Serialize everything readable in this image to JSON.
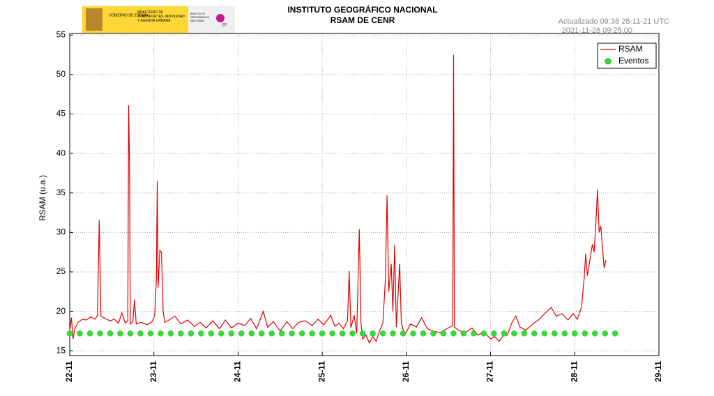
{
  "logo": {
    "gov": "GOBIERNO DE ESPAÑA",
    "ministry": "MINISTERIO DE TRANSPORTES, MOVILIDAD Y AGENDA URBANA",
    "institute": "INSTITUTO GEOGRÁFICO NACIONAL",
    "brand": "ign"
  },
  "chart_data": {
    "type": "line",
    "title": "INSTITUTO GEOGRÁFICO NACIONAL",
    "subtitle": "RSAM DE CENR",
    "updated": "Actualizado 09:38 28-11-21 UTC",
    "timestamp": "2021-11-28 09:25:00",
    "y_label": "RSAM (u.a.)",
    "xlim": [
      0,
      7
    ],
    "xticks": [
      {
        "value": 0,
        "label": "22-11"
      },
      {
        "value": 1,
        "label": "23-11"
      },
      {
        "value": 2,
        "label": "24-11"
      },
      {
        "value": 3,
        "label": "25-11"
      },
      {
        "value": 4,
        "label": "26-11"
      },
      {
        "value": 5,
        "label": "27-11"
      },
      {
        "value": 6,
        "label": "28-11"
      },
      {
        "value": 7,
        "label": "29-11"
      }
    ],
    "ylim": [
      14.4,
      55.2
    ],
    "yticks": [
      15,
      20,
      25,
      30,
      35,
      40,
      45,
      50,
      55
    ],
    "grid": true,
    "legend": "top-right",
    "series": [
      {
        "name": "RSAM",
        "color": "#e00000",
        "style": "line",
        "x": [
          0,
          0.02,
          0.04,
          0.06,
          0.1,
          0.15,
          0.2,
          0.25,
          0.3,
          0.33,
          0.35,
          0.37,
          0.42,
          0.48,
          0.53,
          0.58,
          0.62,
          0.66,
          0.69,
          0.7,
          0.71,
          0.72,
          0.75,
          0.77,
          0.79,
          0.85,
          0.92,
          0.98,
          1.01,
          1.03,
          1.04,
          1.05,
          1.07,
          1.09,
          1.11,
          1.13,
          1.18,
          1.25,
          1.32,
          1.4,
          1.48,
          1.55,
          1.62,
          1.7,
          1.78,
          1.85,
          1.92,
          2,
          2.08,
          2.15,
          2.22,
          2.3,
          2.35,
          2.42,
          2.5,
          2.58,
          2.65,
          2.72,
          2.8,
          2.88,
          2.95,
          3.02,
          3.1,
          3.15,
          3.2,
          3.25,
          3.3,
          3.32,
          3.34,
          3.38,
          3.41,
          3.44,
          3.46,
          3.48,
          3.52,
          3.56,
          3.6,
          3.64,
          3.68,
          3.72,
          3.75,
          3.77,
          3.79,
          3.82,
          3.84,
          3.86,
          3.88,
          3.92,
          3.94,
          3.98,
          4.05,
          4.12,
          4.18,
          4.25,
          4.32,
          4.4,
          4.48,
          4.55,
          4.56,
          4.57,
          4.62,
          4.7,
          4.78,
          4.85,
          4.92,
          5,
          5.05,
          5.1,
          5.15,
          5.2,
          5.25,
          5.3,
          5.35,
          5.42,
          5.5,
          5.58,
          5.65,
          5.72,
          5.78,
          5.85,
          5.92,
          5.98,
          6.03,
          6.08,
          6.11,
          6.13,
          6.15,
          6.18,
          6.21,
          6.23,
          6.25,
          6.27,
          6.29,
          6.31,
          6.33,
          6.35,
          6.37
        ],
        "values": [
          17.5,
          19.2,
          16.5,
          17.8,
          18.6,
          19,
          18.9,
          19.3,
          19,
          19.5,
          31.6,
          19.4,
          19.1,
          18.8,
          19,
          18.5,
          19.8,
          18.5,
          18.8,
          46.1,
          39.4,
          18.4,
          18.7,
          21.5,
          18.4,
          18.6,
          18.3,
          18.7,
          19.5,
          24,
          36.5,
          23,
          27.7,
          27.5,
          20,
          18.6,
          18.9,
          19.4,
          18.4,
          18.9,
          18.1,
          18.6,
          17.9,
          18.8,
          17.8,
          18.9,
          17.9,
          18.5,
          18.2,
          19.1,
          17.8,
          20,
          18,
          18.7,
          17.5,
          18.7,
          17.8,
          18.6,
          18.8,
          18.2,
          19,
          18.3,
          19.5,
          18.1,
          18.5,
          17.8,
          18.8,
          25.1,
          17.9,
          19.5,
          17.2,
          30.4,
          18.5,
          16.5,
          17,
          16,
          16.8,
          16.2,
          17.5,
          18.5,
          24,
          34.7,
          22.5,
          26,
          20,
          28.4,
          18,
          26,
          18.5,
          17,
          18.4,
          18,
          19.2,
          17.8,
          17.5,
          17.3,
          17.8,
          18.2,
          52.5,
          18,
          17.6,
          17.3,
          17.9,
          17,
          17.4,
          16.5,
          16.8,
          16.2,
          16.9,
          17,
          18.5,
          19.4,
          18,
          17.6,
          18.4,
          19,
          19.8,
          20.5,
          19.4,
          19.7,
          18.9,
          19.7,
          19,
          20.5,
          24,
          27.3,
          24.5,
          26.5,
          28.5,
          27.5,
          31,
          35.4,
          30,
          30.8,
          28,
          25.5,
          26.5
        ]
      },
      {
        "name": "Eventos",
        "color": "#33dd33",
        "style": "points",
        "x": [
          0,
          0.12,
          0.24,
          0.36,
          0.48,
          0.6,
          0.72,
          0.84,
          0.96,
          1.08,
          1.2,
          1.32,
          1.44,
          1.56,
          1.68,
          1.8,
          1.92,
          2.04,
          2.16,
          2.28,
          2.4,
          2.52,
          2.64,
          2.76,
          2.88,
          3,
          3.12,
          3.24,
          3.36,
          3.48,
          3.6,
          3.72,
          3.84,
          3.96,
          4.08,
          4.2,
          4.32,
          4.44,
          4.56,
          4.68,
          4.8,
          4.92,
          5.04,
          5.16,
          5.28,
          5.4,
          5.52,
          5.64,
          5.76,
          5.88,
          6,
          6.12,
          6.24,
          6.36,
          6.48
        ],
        "values": [
          17.2,
          17.2,
          17.2,
          17.2,
          17.2,
          17.2,
          17.2,
          17.2,
          17.2,
          17.2,
          17.2,
          17.2,
          17.2,
          17.2,
          17.2,
          17.2,
          17.2,
          17.2,
          17.2,
          17.2,
          17.2,
          17.2,
          17.2,
          17.2,
          17.2,
          17.2,
          17.2,
          17.2,
          17.2,
          17.2,
          17.2,
          17.2,
          17.2,
          17.2,
          17.2,
          17.2,
          17.2,
          17.2,
          17.2,
          17.2,
          17.2,
          17.2,
          17.2,
          17.2,
          17.2,
          17.2,
          17.2,
          17.2,
          17.2,
          17.2,
          17.2,
          17.2,
          17.2,
          17.2,
          17.2
        ]
      }
    ]
  }
}
